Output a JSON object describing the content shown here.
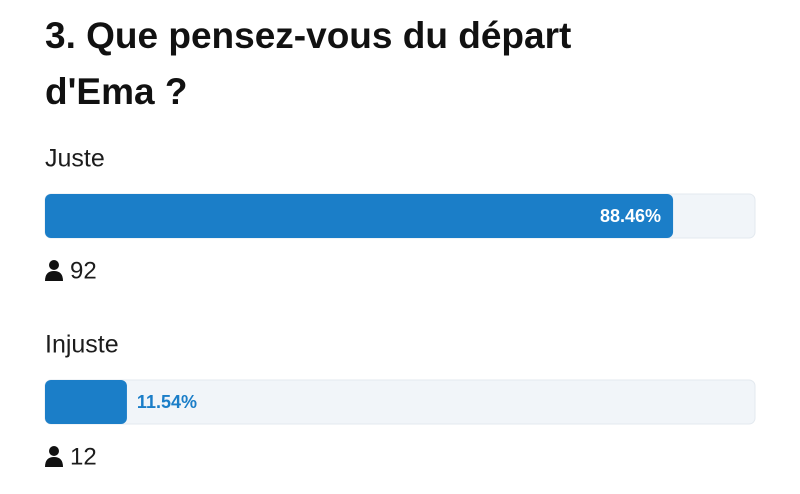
{
  "question": "3. Que pensez-vous du départ d'Ema ?",
  "options": [
    {
      "label": "Juste",
      "value": 88.46,
      "value_label": "88.46%",
      "votes": 92
    },
    {
      "label": "Injuste",
      "value": 11.54,
      "value_label": "11.54%",
      "votes": 12
    }
  ],
  "bar_color": "#1b7ec8"
}
